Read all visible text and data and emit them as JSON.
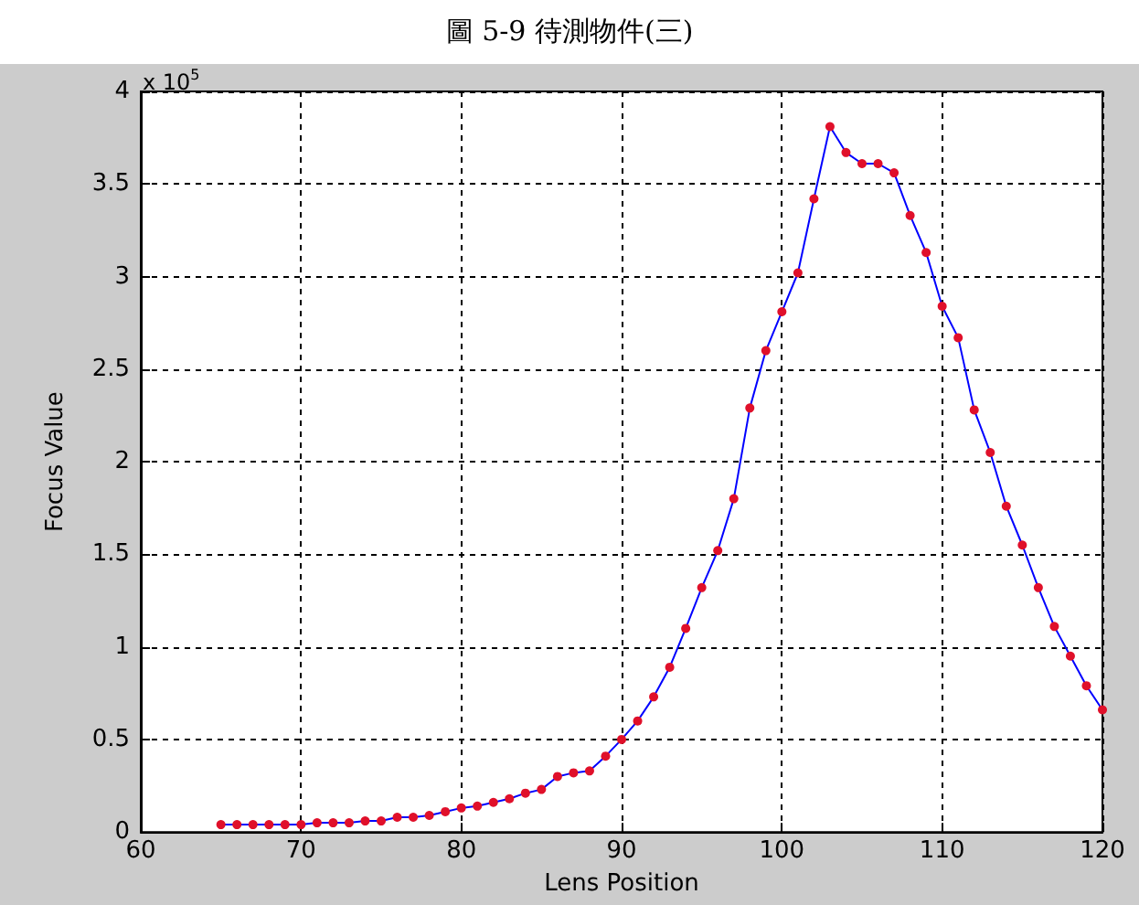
{
  "chart_data": {
    "type": "line",
    "title": "圖 5-9  待測物件(三)",
    "xlabel": "Lens Position",
    "ylabel": "Focus Value",
    "annotations": [
      "x 10$^{5}$"
    ],
    "x": [
      65,
      66,
      67,
      68,
      69,
      70,
      71,
      72,
      73,
      74,
      75,
      76,
      77,
      78,
      79,
      80,
      81,
      82,
      83,
      84,
      85,
      86,
      87,
      88,
      89,
      90,
      91,
      92,
      93,
      94,
      95,
      96,
      97,
      98,
      99,
      100,
      101,
      102,
      103,
      104,
      105,
      106,
      107,
      108,
      109,
      110,
      111,
      112,
      113,
      114,
      115,
      116,
      117,
      118,
      119,
      120
    ],
    "series": [
      {
        "color": "#0000ff",
        "colors": [
          "#e0102a",
          "#e0102a",
          "#e0102a",
          "#e0102a",
          "#e0102a",
          "#e0102a",
          "#e0102a",
          "#e0102a",
          "#e0102a",
          "#e0102a",
          "#e0102a",
          "#e0102a",
          "#e0102a",
          "#e0102a",
          "#e0102a",
          "#e0102a",
          "#e0102a",
          "#e0102a",
          "#e0102a",
          "#e0102a",
          "#e0102a",
          "#e0102a",
          "#e0102a",
          "#e0102a",
          "#e0102a",
          "#e0102a",
          "#e0102a",
          "#e0102a",
          "#e0102a",
          "#e0102a",
          "#e0102a",
          "#e0102a",
          "#e0102a",
          "#e0102a",
          "#e0102a",
          "#e0102a",
          "#e0102a",
          "#e0102a",
          "#e0102a",
          "#e0102a",
          "#e0102a",
          "#e0102a",
          "#e0102a",
          "#e0102a",
          "#e0102a",
          "#e0102a",
          "#e0102a",
          "#e0102a",
          "#e0102a",
          "#e0102a",
          "#e0102a",
          "#e0102a",
          "#e0102a",
          "#e0102a",
          "#e0102a",
          "#e0102a"
        ],
        "values": [
          0.04,
          0.04,
          0.04,
          0.04,
          0.04,
          0.04,
          0.05,
          0.05,
          0.05,
          0.06,
          0.06,
          0.08,
          0.08,
          0.09,
          0.11,
          0.13,
          0.14,
          0.16,
          0.18,
          0.21,
          0.23,
          0.3,
          0.32,
          0.33,
          0.41,
          0.5,
          0.6,
          0.73,
          0.89,
          1.1,
          1.32,
          1.52,
          1.8,
          2.29,
          2.6,
          2.81,
          3.02,
          3.42,
          3.81,
          3.67,
          3.61,
          3.61,
          3.56,
          3.33,
          3.13,
          2.84,
          2.67,
          2.28,
          2.05,
          1.76,
          1.55,
          1.32,
          1.11,
          0.95,
          0.79,
          0.66
        ]
      }
    ],
    "xlim": [
      60,
      120
    ],
    "xticks": [
      60,
      70,
      80,
      90,
      100,
      110,
      120
    ],
    "ylim": [
      0,
      4
    ],
    "yticks": [
      0,
      0.5,
      1,
      1.5,
      2,
      2.5,
      3,
      3.5,
      4
    ],
    "grid": true,
    "marker": "circle",
    "line_style": "solid"
  }
}
